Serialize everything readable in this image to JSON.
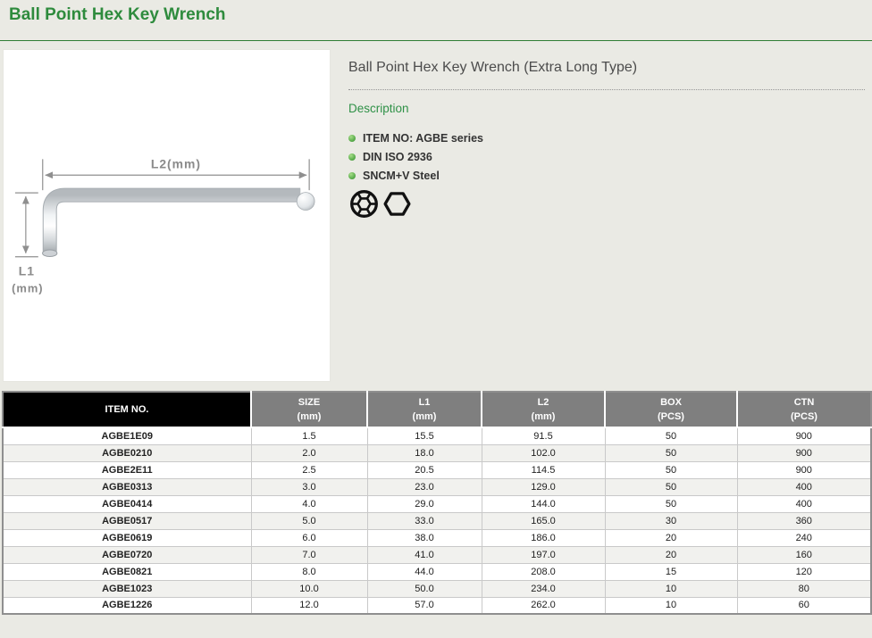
{
  "page": {
    "title": "Ball Point Hex Key Wrench"
  },
  "product": {
    "name": "Ball Point Hex Key Wrench (Extra Long Type)",
    "section_label": "Description",
    "features": [
      "ITEM NO: AGBE series",
      "DIN ISO 2936",
      "SNCM+V Steel"
    ],
    "diagram": {
      "l2_label": "L2(mm)",
      "l1_label": "L1",
      "l1_unit": "(mm)"
    },
    "drive_icons": [
      "ball-point-socket-icon",
      "hex-socket-icon"
    ]
  },
  "colors": {
    "accent_green": "#2e8b3d",
    "description_green": "#2f9147",
    "page_background": "#eaeae4",
    "table_header_black": "#000000",
    "table_header_gray": "#7f7f7f",
    "row_alt_gray": "#f1f1ee"
  },
  "table": {
    "headers": [
      {
        "line1": "ITEM NO.",
        "line2": ""
      },
      {
        "line1": "SIZE",
        "line2": "(mm)"
      },
      {
        "line1": "L1",
        "line2": "(mm)"
      },
      {
        "line1": "L2",
        "line2": "(mm)"
      },
      {
        "line1": "BOX",
        "line2": "(PCS)"
      },
      {
        "line1": "CTN",
        "line2": "(PCS)"
      }
    ],
    "rows": [
      [
        "AGBE1E09",
        "1.5",
        "15.5",
        "91.5",
        "50",
        "900"
      ],
      [
        "AGBE0210",
        "2.0",
        "18.0",
        "102.0",
        "50",
        "900"
      ],
      [
        "AGBE2E11",
        "2.5",
        "20.5",
        "114.5",
        "50",
        "900"
      ],
      [
        "AGBE0313",
        "3.0",
        "23.0",
        "129.0",
        "50",
        "400"
      ],
      [
        "AGBE0414",
        "4.0",
        "29.0",
        "144.0",
        "50",
        "400"
      ],
      [
        "AGBE0517",
        "5.0",
        "33.0",
        "165.0",
        "30",
        "360"
      ],
      [
        "AGBE0619",
        "6.0",
        "38.0",
        "186.0",
        "20",
        "240"
      ],
      [
        "AGBE0720",
        "7.0",
        "41.0",
        "197.0",
        "20",
        "160"
      ],
      [
        "AGBE0821",
        "8.0",
        "44.0",
        "208.0",
        "15",
        "120"
      ],
      [
        "AGBE1023",
        "10.0",
        "50.0",
        "234.0",
        "10",
        "80"
      ],
      [
        "AGBE1226",
        "12.0",
        "57.0",
        "262.0",
        "10",
        "60"
      ]
    ]
  }
}
